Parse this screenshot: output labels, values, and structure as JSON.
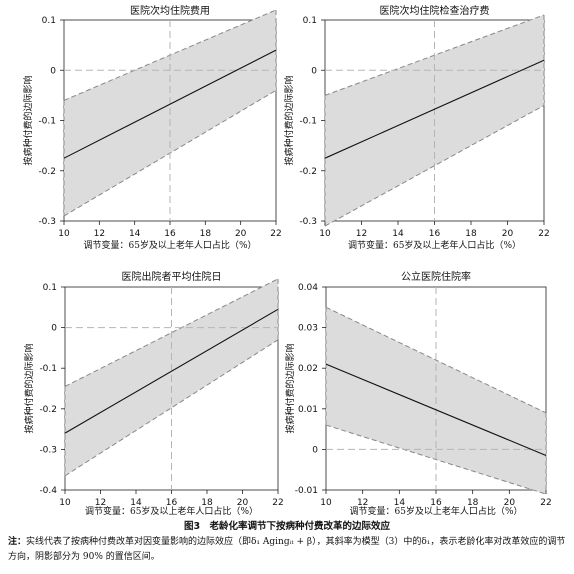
{
  "chart_data": [
    {
      "type": "line",
      "title": "医院次均住院费用",
      "xlabel": "调节变量：65岁及以上老年人口占比（%）",
      "ylabel": "按病种付费的边际影响",
      "xlim": [
        10,
        22
      ],
      "ylim": [
        -0.3,
        0.1
      ],
      "xticks": [
        "10",
        "12",
        "14",
        "16",
        "18",
        "20",
        "22"
      ],
      "yticks": [
        "-0.3",
        "-0.2",
        "-0.1",
        "0",
        "0.1"
      ],
      "x": [
        10,
        22
      ],
      "estimate": [
        -0.175,
        0.04
      ],
      "ci_lower": [
        -0.29,
        -0.04
      ],
      "ci_upper": [
        -0.06,
        0.12
      ],
      "ref_y": 0,
      "ref_x": 16
    },
    {
      "type": "line",
      "title": "医院次均住院检查治疗费",
      "xlabel": "调节变量：65岁及以上老年人口占比（%）",
      "ylabel": "按病种付费的边际影响",
      "xlim": [
        10,
        22
      ],
      "ylim": [
        -0.3,
        0.1
      ],
      "xticks": [
        "10",
        "12",
        "14",
        "16",
        "18",
        "20",
        "22"
      ],
      "yticks": [
        "-0.3",
        "-0.2",
        "-0.1",
        "0",
        "0.1"
      ],
      "x": [
        10,
        22
      ],
      "estimate": [
        -0.175,
        0.02
      ],
      "ci_lower": [
        -0.31,
        -0.07
      ],
      "ci_upper": [
        -0.05,
        0.11
      ],
      "ref_y": 0,
      "ref_x": 16
    },
    {
      "type": "line",
      "title": "医院出院者平均住院日",
      "xlabel": "调节变量：65岁及以上老年人口占比（%）",
      "ylabel": "按病种付费的边际影响",
      "xlim": [
        10,
        22
      ],
      "ylim": [
        -0.4,
        0.1
      ],
      "xticks": [
        "10",
        "12",
        "14",
        "16",
        "18",
        "20",
        "22"
      ],
      "yticks": [
        "-0.4",
        "-0.3",
        "-0.2",
        "-0.1",
        "0",
        "0.1"
      ],
      "x": [
        10,
        22
      ],
      "estimate": [
        -0.26,
        0.045
      ],
      "ci_lower": [
        -0.365,
        -0.03
      ],
      "ci_upper": [
        -0.145,
        0.12
      ],
      "ref_y": 0,
      "ref_x": 16
    },
    {
      "type": "line",
      "title": "公立医院住院率",
      "xlabel": "调节变量：65岁及以上老年人口占比（%）",
      "ylabel": "按病种付费的边际影响",
      "xlim": [
        10,
        22
      ],
      "ylim": [
        -0.01,
        0.04
      ],
      "xticks": [
        "10",
        "12",
        "14",
        "16",
        "18",
        "20",
        "22"
      ],
      "yticks": [
        "-0.01",
        "0",
        "0.01",
        "0.02",
        "0.03",
        "0.04"
      ],
      "x": [
        10,
        22
      ],
      "estimate": [
        0.021,
        -0.0015
      ],
      "ci_lower": [
        0.006,
        -0.011
      ],
      "ci_upper": [
        0.035,
        0.009
      ],
      "ref_y": 0,
      "ref_x": 16
    }
  ],
  "caption": "图3　老龄化率调节下按病种付费改革的边际效应",
  "note_label": "注：",
  "note_text": "实线代表了按病种付费改革对因变量影响的边际效应（即δ₁ Agingᵢₜ + β），其斜率为模型（3）中的δ₁，表示老龄化率对改革效应的调节方向，阴影部分为 90% 的置信区间。"
}
